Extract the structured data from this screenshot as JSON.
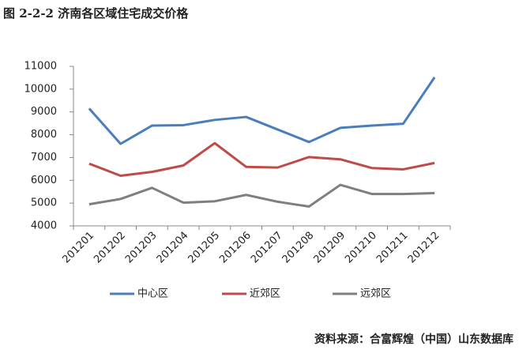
{
  "chart_data": {
    "type": "line",
    "title": "图 2-2-2 济南各区域住宅成交价格",
    "categories": [
      "201201",
      "201202",
      "201203",
      "201204",
      "201205",
      "201206",
      "201207",
      "201208",
      "201209",
      "201210",
      "201211",
      "201212"
    ],
    "series": [
      {
        "name": "中心区",
        "color": "#4a7ebb",
        "values": [
          9150,
          7600,
          8400,
          8420,
          8650,
          8780,
          8230,
          7680,
          8300,
          8400,
          8480,
          10520
        ]
      },
      {
        "name": "近郊区",
        "color": "#be4b48",
        "values": [
          6730,
          6200,
          6370,
          6650,
          7630,
          6590,
          6560,
          7020,
          6920,
          6540,
          6480,
          6760
        ]
      },
      {
        "name": "远郊区",
        "color": "#7f7f7f",
        "values": [
          4950,
          5180,
          5670,
          5020,
          5080,
          5360,
          5060,
          4850,
          5800,
          5400,
          5400,
          5440
        ]
      }
    ],
    "ylim": [
      4000,
      11000
    ],
    "yticks": [
      4000,
      5000,
      6000,
      7000,
      8000,
      9000,
      10000,
      11000
    ],
    "grid": false,
    "legend": "bottom",
    "source": "资料来源：合富辉煌（中国）山东数据库"
  }
}
